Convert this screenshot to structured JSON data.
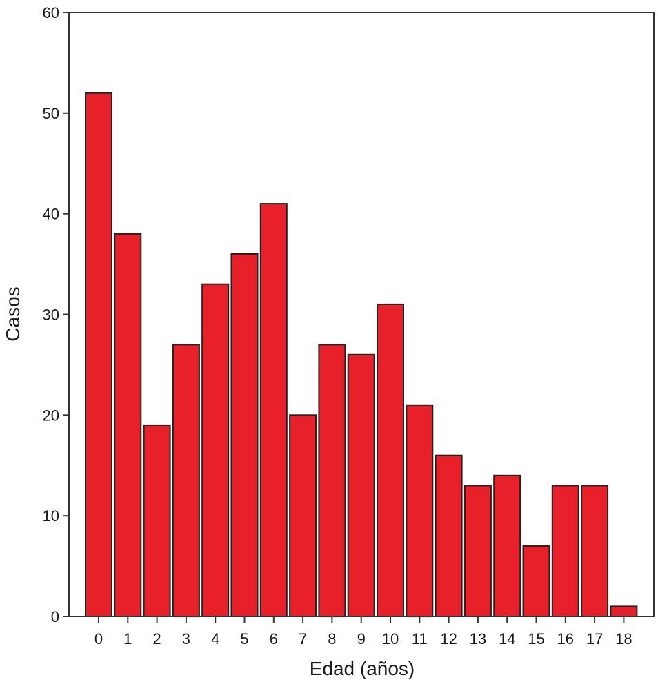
{
  "chart_data": {
    "type": "bar",
    "title": "",
    "xlabel": "Edad (años)",
    "ylabel": "Casos",
    "categories": [
      "0",
      "1",
      "2",
      "3",
      "4",
      "5",
      "6",
      "7",
      "8",
      "9",
      "10",
      "11",
      "12",
      "13",
      "14",
      "15",
      "16",
      "17",
      "18"
    ],
    "values": [
      52,
      38,
      19,
      27,
      33,
      36,
      41,
      20,
      27,
      26,
      31,
      21,
      16,
      13,
      14,
      7,
      13,
      13,
      1
    ],
    "ylim": [
      0,
      60
    ],
    "yticks": [
      0,
      10,
      20,
      30,
      40,
      50,
      60
    ],
    "grid": false,
    "legend": "none",
    "bar_color": "#e8202a"
  }
}
